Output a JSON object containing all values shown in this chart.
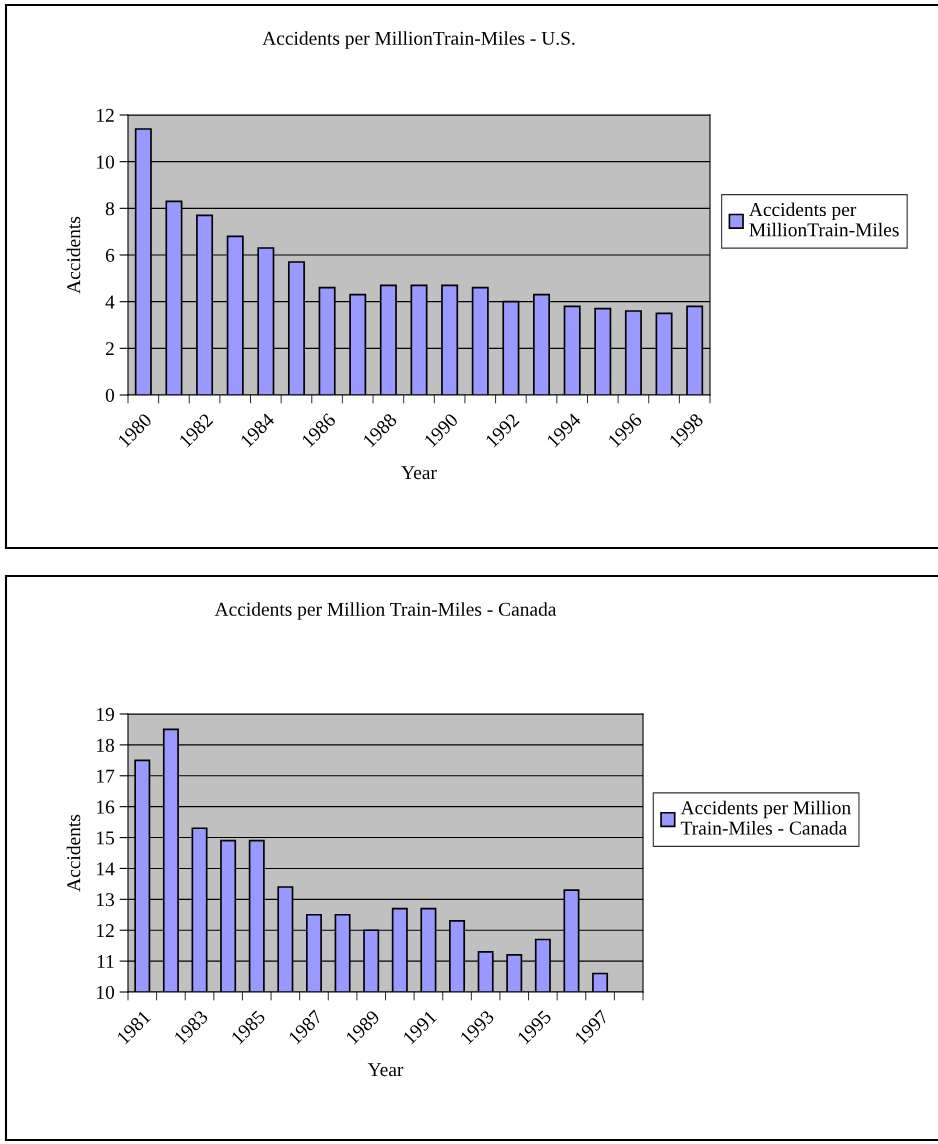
{
  "chart_data": [
    {
      "type": "bar",
      "title": "Accidents per MillionTrain-Miles - U.S.",
      "xlabel": "Year",
      "ylabel": "Accidents",
      "categories": [
        "1980",
        null,
        "1982",
        null,
        "1984",
        null,
        "1986",
        null,
        "1988",
        null,
        "1990",
        null,
        "1992",
        null,
        "1994",
        null,
        "1996",
        null,
        "1998"
      ],
      "series": [
        {
          "name": "Accidents per MillionTrain-Miles",
          "color": "#9999ff",
          "values": [
            11.4,
            8.3,
            7.7,
            6.8,
            6.3,
            5.7,
            4.6,
            4.3,
            4.7,
            4.7,
            4.7,
            4.6,
            4.0,
            4.3,
            3.8,
            3.7,
            3.6,
            3.5,
            3.8
          ]
        }
      ],
      "ylim": [
        0,
        12
      ],
      "yticks": [
        0,
        2,
        4,
        6,
        8,
        10,
        12
      ],
      "grid": "y",
      "legend": "right"
    },
    {
      "type": "bar",
      "title": "Accidents per Million Train-Miles - Canada",
      "xlabel": "Year",
      "ylabel": "Accidents",
      "categories": [
        "1981",
        null,
        "1983",
        null,
        "1985",
        null,
        "1987",
        null,
        "1989",
        null,
        "1991",
        null,
        "1993",
        null,
        "1995",
        null,
        "1997",
        null
      ],
      "series": [
        {
          "name": "Accidents per Million Train-Miles - Canada",
          "color": "#9999ff",
          "values": [
            17.5,
            18.5,
            15.3,
            14.9,
            14.9,
            13.4,
            12.5,
            12.5,
            12.0,
            12.7,
            12.7,
            12.3,
            11.3,
            11.2,
            11.7,
            13.3,
            10.6,
            null
          ]
        }
      ],
      "ylim": [
        10,
        19
      ],
      "yticks": [
        10,
        11,
        12,
        13,
        14,
        15,
        16,
        17,
        18,
        19
      ],
      "grid": "y",
      "legend": "right"
    }
  ]
}
